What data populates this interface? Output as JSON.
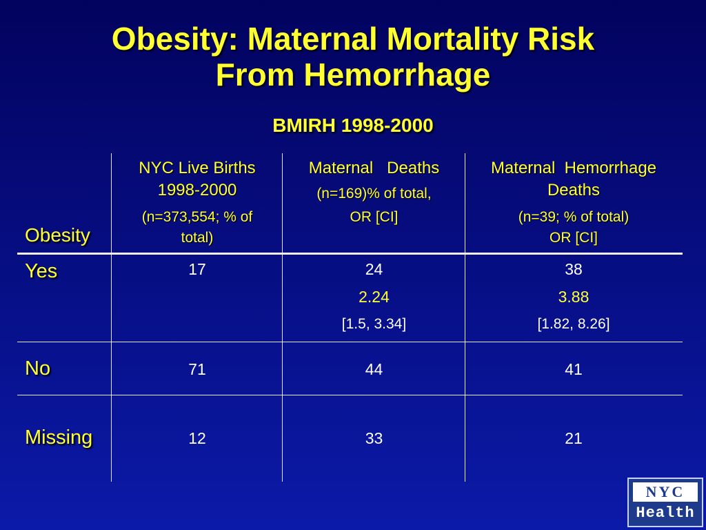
{
  "slide": {
    "title_line1": "Obesity: Maternal Mortality Risk",
    "title_line2": "From Hemorrhage",
    "subtitle": "BMIRH 1998-2000"
  },
  "table": {
    "header_rowlabel": "Obesity",
    "columns": [
      {
        "line1": "NYC Live Births",
        "line2": "1998-2000",
        "line3": "(n=373,554; % of",
        "line4": "total)"
      },
      {
        "line1": "Maternal   Deaths",
        "line2": "(n=169)% of total,",
        "line3": "OR [CI]"
      },
      {
        "line1": "Maternal  Hemorrhage",
        "line2": "Deaths",
        "line3": "(n=39; % of total)",
        "line4": "OR [CI]"
      }
    ],
    "rows": [
      {
        "label": "Yes",
        "c1": "17",
        "c2": "24",
        "c2_or": "2.24",
        "c2_ci": "[1.5, 3.34]",
        "c3": "38",
        "c3_or": "3.88",
        "c3_ci": "[1.82, 8.26]"
      },
      {
        "label": "No",
        "c1": "71",
        "c2": "44",
        "c3": "41"
      },
      {
        "label": "Missing",
        "c1": "12",
        "c2": "33",
        "c3": "21"
      }
    ]
  },
  "logo": {
    "top": "NYC",
    "bottom": "Health"
  },
  "colors": {
    "background_top": "#02025e",
    "background_bottom": "#0b1aa8",
    "title": "#ffff33",
    "text": "#ffffff"
  }
}
